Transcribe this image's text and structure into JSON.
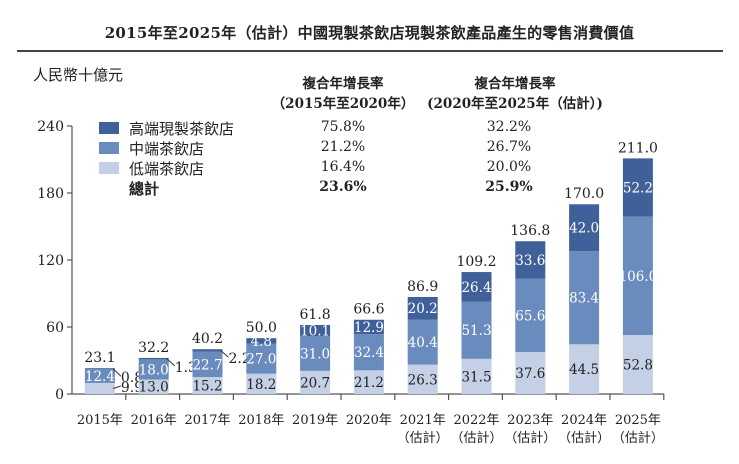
{
  "chart_data": {
    "type": "bar",
    "stacked": true,
    "title": "2015年至2025年（估計）中國現製茶飲店現製茶飲產品產生的零售消費價值",
    "ylabel": "人民幣十億元",
    "xlabel": "",
    "ylim": [
      0,
      240
    ],
    "yticks": [
      0,
      60,
      120,
      180,
      240
    ],
    "grid": false,
    "legend_position": "top-left",
    "categories": [
      {
        "year": "2015年",
        "note": ""
      },
      {
        "year": "2016年",
        "note": ""
      },
      {
        "year": "2017年",
        "note": ""
      },
      {
        "year": "2018年",
        "note": ""
      },
      {
        "year": "2019年",
        "note": ""
      },
      {
        "year": "2020年",
        "note": ""
      },
      {
        "year": "2021年",
        "note": "（估計）"
      },
      {
        "year": "2022年",
        "note": "（估計）"
      },
      {
        "year": "2023年",
        "note": "（估計）"
      },
      {
        "year": "2024年",
        "note": "（估計）"
      },
      {
        "year": "2025年",
        "note": "（估計）"
      }
    ],
    "series": [
      {
        "name": "低端茶飲店",
        "color": "#c3d0e5",
        "label_color": "#222222",
        "values": [
          9.9,
          13.0,
          15.2,
          18.2,
          20.7,
          21.2,
          26.3,
          31.5,
          37.6,
          44.5,
          52.8
        ]
      },
      {
        "name": "中端茶飲店",
        "color": "#6a8bbd",
        "label_color": "#ffffff",
        "values": [
          12.4,
          18.0,
          22.7,
          27.0,
          31.0,
          32.4,
          40.4,
          51.3,
          65.6,
          83.4,
          106.0
        ]
      },
      {
        "name": "高端現製茶飲店",
        "color": "#3f6098",
        "label_color": "#ffffff",
        "values": [
          0.8,
          1.3,
          2.2,
          4.8,
          10.1,
          12.9,
          20.2,
          26.4,
          33.6,
          42.0,
          52.2
        ]
      }
    ],
    "totals": [
      23.1,
      32.2,
      40.2,
      50.0,
      61.8,
      66.6,
      86.9,
      109.2,
      136.8,
      170.0,
      211.0
    ],
    "outside_labels": {
      "2015年": {
        "低端茶飲店": "9.9",
        "高端現製茶飲店": "0.8"
      },
      "2016年": {
        "高端現製茶飲店": "1.3"
      },
      "2017年": {
        "高端現製茶飲店": "2.2"
      }
    },
    "cagr_table": {
      "headers": [
        {
          "line1": "複合年增長率",
          "line2": "（2015年至2020年）"
        },
        {
          "line1": "複合年增長率",
          "line2": "(2020年至2025年（估計）)"
        }
      ],
      "rows": [
        {
          "label": "高端現製茶飲店",
          "cagr_2015_2020": "75.8%",
          "cagr_2020_2025": "32.2%",
          "bold": false
        },
        {
          "label": "中端茶飲店",
          "cagr_2015_2020": "21.2%",
          "cagr_2020_2025": "26.7%",
          "bold": false
        },
        {
          "label": "低端茶飲店",
          "cagr_2015_2020": "16.4%",
          "cagr_2020_2025": "20.0%",
          "bold": false
        },
        {
          "label": "總計",
          "cagr_2015_2020": "23.6%",
          "cagr_2020_2025": "25.9%",
          "bold": true
        }
      ]
    }
  }
}
